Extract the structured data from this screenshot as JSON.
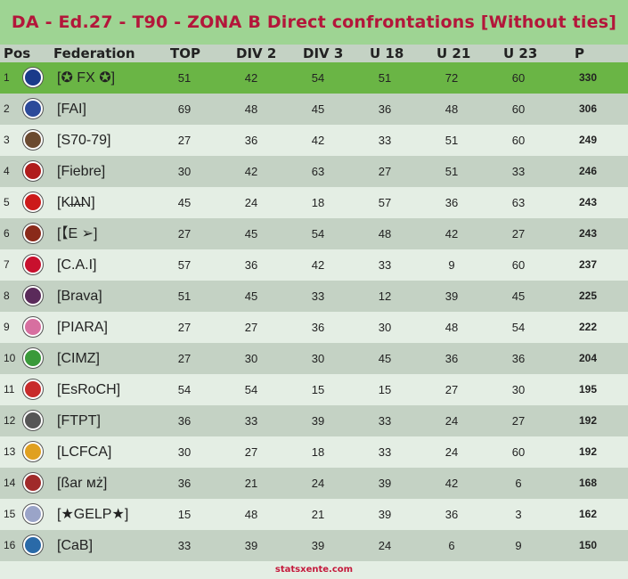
{
  "title": "DA - Ed.27 - T90 - ZONA B Direct confrontations [Without ties]",
  "columns": [
    "Pos",
    "Federation",
    "TOP",
    "DIV 2",
    "DIV 3",
    "U 18",
    "U 21",
    "U 23",
    "P"
  ],
  "footer": "statsxente.com",
  "colors": {
    "title_bg": "#9ed493",
    "title_text": "#b3163a",
    "leader_row": "#6ab545",
    "row_light": "#e4eee4",
    "row_dark": "#c4d2c4"
  },
  "chart_data": {
    "type": "table",
    "columns": [
      "Pos",
      "Federation",
      "TOP",
      "DIV 2",
      "DIV 3",
      "U 18",
      "U 21",
      "U 23",
      "P"
    ],
    "rows": [
      {
        "pos": "1",
        "federation": "[✪ FX ✪]",
        "top": "51",
        "div2": "42",
        "div3": "54",
        "u18": "51",
        "u21": "72",
        "u23": "60",
        "p": "330",
        "crest": "#1a3a8a"
      },
      {
        "pos": "2",
        "federation": "[FAI]",
        "top": "69",
        "div2": "48",
        "div3": "45",
        "u18": "36",
        "u21": "48",
        "u23": "60",
        "p": "306",
        "crest": "#2c4a9a"
      },
      {
        "pos": "3",
        "federation": "[S70-79]",
        "top": "27",
        "div2": "36",
        "div3": "42",
        "u18": "33",
        "u21": "51",
        "u23": "60",
        "p": "249",
        "crest": "#6b4a30"
      },
      {
        "pos": "4",
        "federation": "[Fiebre]",
        "top": "30",
        "div2": "42",
        "div3": "63",
        "u18": "27",
        "u21": "51",
        "u23": "33",
        "p": "246",
        "crest": "#b01c1c"
      },
      {
        "pos": "5",
        "federation": "[Kl̶λ̶N]",
        "top": "45",
        "div2": "24",
        "div3": "18",
        "u18": "57",
        "u21": "36",
        "u23": "63",
        "p": "243",
        "crest": "#cc1a1a"
      },
      {
        "pos": "6",
        "federation": "[【E ➢]",
        "top": "27",
        "div2": "45",
        "div3": "54",
        "u18": "48",
        "u21": "42",
        "u23": "27",
        "p": "243",
        "crest": "#8a2a1a"
      },
      {
        "pos": "7",
        "federation": "[C.A.I]",
        "top": "57",
        "div2": "36",
        "div3": "42",
        "u18": "33",
        "u21": "9",
        "u23": "60",
        "p": "237",
        "crest": "#c8102e"
      },
      {
        "pos": "8",
        "federation": "[Brava]",
        "top": "51",
        "div2": "45",
        "div3": "33",
        "u18": "12",
        "u21": "39",
        "u23": "45",
        "p": "225",
        "crest": "#5a2a5a"
      },
      {
        "pos": "9",
        "federation": "[PIARA]",
        "top": "27",
        "div2": "27",
        "div3": "36",
        "u18": "30",
        "u21": "48",
        "u23": "54",
        "p": "222",
        "crest": "#d76fa0"
      },
      {
        "pos": "10",
        "federation": "[CIMZ]",
        "top": "27",
        "div2": "30",
        "div3": "30",
        "u18": "45",
        "u21": "36",
        "u23": "36",
        "p": "204",
        "crest": "#3a9a3a"
      },
      {
        "pos": "11",
        "federation": "[EsRoCH]",
        "top": "54",
        "div2": "54",
        "div3": "15",
        "u18": "15",
        "u21": "27",
        "u23": "30",
        "p": "195",
        "crest": "#c82a2a"
      },
      {
        "pos": "12",
        "federation": "[FTPT]",
        "top": "36",
        "div2": "33",
        "div3": "39",
        "u18": "33",
        "u21": "24",
        "u23": "27",
        "p": "192",
        "crest": "#555555"
      },
      {
        "pos": "13",
        "federation": "[LCFCA]",
        "top": "30",
        "div2": "27",
        "div3": "18",
        "u18": "33",
        "u21": "24",
        "u23": "60",
        "p": "192",
        "crest": "#e0a020"
      },
      {
        "pos": "14",
        "federation": "[ßar мż]",
        "top": "36",
        "div2": "21",
        "div3": "24",
        "u18": "39",
        "u21": "42",
        "u23": "6",
        "p": "168",
        "crest": "#a02a2a"
      },
      {
        "pos": "15",
        "federation": "[★GELP★]",
        "top": "15",
        "div2": "48",
        "div3": "21",
        "u18": "39",
        "u21": "36",
        "u23": "3",
        "p": "162",
        "crest": "#9aa4c8"
      },
      {
        "pos": "16",
        "federation": "[CaB]",
        "top": "33",
        "div2": "39",
        "div3": "39",
        "u18": "24",
        "u21": "6",
        "u23": "9",
        "p": "150",
        "crest": "#2a6aa8"
      }
    ]
  }
}
